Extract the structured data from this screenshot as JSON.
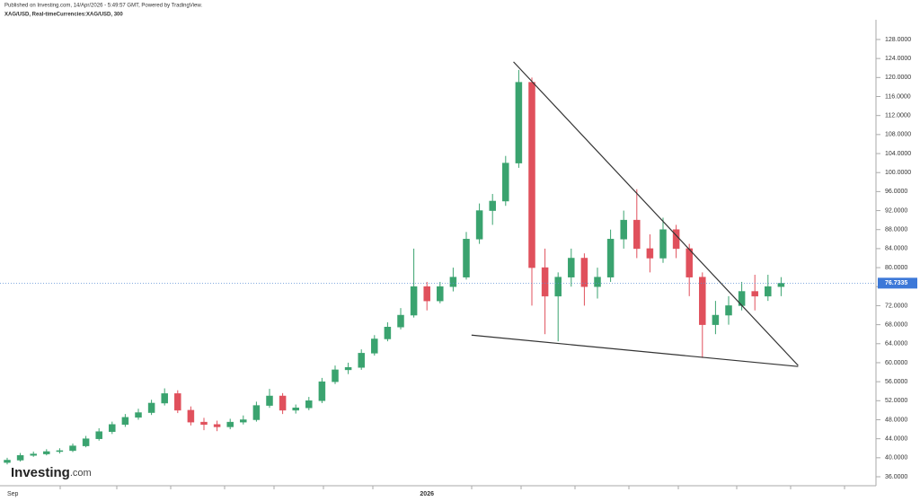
{
  "header": {
    "published": "Published on Investing.com, 14/Apr/2026 - 5:49:57 GMT, Powered by TradingView.",
    "symbol": "XAG/USD, Real-timeCurrencies:XAG/USD, 300"
  },
  "logo": {
    "name": "Investing",
    "suffix": ".com"
  },
  "chart_data": {
    "type": "candlestick",
    "up_color": "#3aa36f",
    "down_color": "#e0505c",
    "grid": false,
    "ylim": [
      34,
      132
    ],
    "yticks": [
      {
        "value": 36,
        "label": "36.0000"
      },
      {
        "value": 40,
        "label": "40.0000"
      },
      {
        "value": 44,
        "label": "44.0000"
      },
      {
        "value": 48,
        "label": "48.0000"
      },
      {
        "value": 52,
        "label": "52.0000"
      },
      {
        "value": 56,
        "label": "56.0000"
      },
      {
        "value": 60,
        "label": "60.0000"
      },
      {
        "value": 64,
        "label": "64.0000"
      },
      {
        "value": 68,
        "label": "68.0000"
      },
      {
        "value": 72,
        "label": "72.0000"
      },
      {
        "value": 76,
        "label": "76.0000"
      },
      {
        "value": 80,
        "label": "80.0000"
      },
      {
        "value": 84,
        "label": "84.0000"
      },
      {
        "value": 88,
        "label": "88.0000"
      },
      {
        "value": 92,
        "label": "92.0000"
      },
      {
        "value": 96,
        "label": "96.0000"
      },
      {
        "value": 100,
        "label": "100.0000"
      },
      {
        "value": 104,
        "label": "104.0000"
      },
      {
        "value": 108,
        "label": "108.0000"
      },
      {
        "value": 112,
        "label": "112.0000"
      },
      {
        "value": 116,
        "label": "116.0000"
      },
      {
        "value": 120,
        "label": "120.0000"
      },
      {
        "value": 124,
        "label": "124.0000"
      },
      {
        "value": 128,
        "label": "128.0000"
      }
    ],
    "categories": [
      "Sep",
      null,
      null,
      null,
      null,
      null,
      null,
      null,
      null,
      null,
      null,
      null,
      null,
      null,
      null,
      null,
      null,
      null,
      null,
      null,
      null,
      null,
      null,
      null,
      null,
      null,
      null,
      null,
      null,
      null,
      null,
      null,
      "2026",
      null,
      null,
      null,
      null,
      null,
      null,
      null,
      null,
      null,
      null,
      null,
      null,
      null,
      null,
      null,
      null,
      null,
      null,
      null,
      null,
      null,
      null,
      null,
      null,
      null,
      null,
      null
    ],
    "candles": [
      {
        "o": 39,
        "h": 40,
        "l": 38.6,
        "c": 39.5
      },
      {
        "o": 39.5,
        "h": 41,
        "l": 39.2,
        "c": 40.5
      },
      {
        "o": 40.5,
        "h": 41.3,
        "l": 40.2,
        "c": 40.8
      },
      {
        "o": 40.8,
        "h": 41.8,
        "l": 40.5,
        "c": 41.3
      },
      {
        "o": 41.3,
        "h": 42,
        "l": 40.9,
        "c": 41.5
      },
      {
        "o": 41.5,
        "h": 43,
        "l": 41.2,
        "c": 42.5
      },
      {
        "o": 42.5,
        "h": 44.6,
        "l": 42.2,
        "c": 44
      },
      {
        "o": 44,
        "h": 46.2,
        "l": 43.6,
        "c": 45.5
      },
      {
        "o": 45.5,
        "h": 47.6,
        "l": 45,
        "c": 47
      },
      {
        "o": 47,
        "h": 49.2,
        "l": 46.5,
        "c": 48.5
      },
      {
        "o": 48.5,
        "h": 50.3,
        "l": 48,
        "c": 49.5
      },
      {
        "o": 49.5,
        "h": 52.2,
        "l": 49,
        "c": 51.5
      },
      {
        "o": 51.5,
        "h": 54.6,
        "l": 51,
        "c": 53.5
      },
      {
        "o": 53.5,
        "h": 54.2,
        "l": 49.4,
        "c": 50
      },
      {
        "o": 50,
        "h": 50.8,
        "l": 46.8,
        "c": 47.5
      },
      {
        "o": 47.5,
        "h": 48.4,
        "l": 45.8,
        "c": 47
      },
      {
        "o": 47,
        "h": 47.8,
        "l": 45.6,
        "c": 46.5
      },
      {
        "o": 46.5,
        "h": 48.2,
        "l": 46,
        "c": 47.5
      },
      {
        "o": 47.5,
        "h": 48.9,
        "l": 47,
        "c": 48
      },
      {
        "o": 48,
        "h": 51.8,
        "l": 47.6,
        "c": 51
      },
      {
        "o": 51,
        "h": 54.5,
        "l": 50.5,
        "c": 53
      },
      {
        "o": 53,
        "h": 53.6,
        "l": 49.2,
        "c": 50
      },
      {
        "o": 50,
        "h": 51.2,
        "l": 49.3,
        "c": 50.5
      },
      {
        "o": 50.5,
        "h": 52.8,
        "l": 50,
        "c": 52
      },
      {
        "o": 52,
        "h": 56.8,
        "l": 51.5,
        "c": 56
      },
      {
        "o": 56,
        "h": 59.4,
        "l": 55.5,
        "c": 58.5
      },
      {
        "o": 58.5,
        "h": 60,
        "l": 57.6,
        "c": 59
      },
      {
        "o": 59,
        "h": 62.8,
        "l": 58.5,
        "c": 62
      },
      {
        "o": 62,
        "h": 65.8,
        "l": 61.5,
        "c": 65
      },
      {
        "o": 65,
        "h": 68.5,
        "l": 64.5,
        "c": 67.5
      },
      {
        "o": 67.5,
        "h": 71.5,
        "l": 67,
        "c": 70
      },
      {
        "o": 70,
        "h": 84,
        "l": 69.5,
        "c": 76
      },
      {
        "o": 76,
        "h": 77,
        "l": 71,
        "c": 73
      },
      {
        "o": 73,
        "h": 77,
        "l": 72.5,
        "c": 76
      },
      {
        "o": 76,
        "h": 80,
        "l": 75,
        "c": 78
      },
      {
        "o": 78,
        "h": 87.5,
        "l": 77.5,
        "c": 86
      },
      {
        "o": 86,
        "h": 93.5,
        "l": 85,
        "c": 92
      },
      {
        "o": 92,
        "h": 95.5,
        "l": 89,
        "c": 94
      },
      {
        "o": 94,
        "h": 103.5,
        "l": 93,
        "c": 102
      },
      {
        "o": 102,
        "h": 121.6,
        "l": 101,
        "c": 119
      },
      {
        "o": 119,
        "h": 120,
        "l": 72,
        "c": 80
      },
      {
        "o": 80,
        "h": 84,
        "l": 66,
        "c": 74
      },
      {
        "o": 74,
        "h": 79,
        "l": 64.5,
        "c": 78
      },
      {
        "o": 78,
        "h": 84,
        "l": 76,
        "c": 82
      },
      {
        "o": 82,
        "h": 83,
        "l": 72,
        "c": 76
      },
      {
        "o": 76,
        "h": 80,
        "l": 73.5,
        "c": 78
      },
      {
        "o": 78,
        "h": 88,
        "l": 77,
        "c": 86
      },
      {
        "o": 86,
        "h": 92,
        "l": 84,
        "c": 90
      },
      {
        "o": 90,
        "h": 96.5,
        "l": 82,
        "c": 84
      },
      {
        "o": 84,
        "h": 87,
        "l": 79,
        "c": 82
      },
      {
        "o": 82,
        "h": 90.5,
        "l": 81,
        "c": 88
      },
      {
        "o": 88,
        "h": 89,
        "l": 82,
        "c": 84
      },
      {
        "o": 84,
        "h": 85,
        "l": 74,
        "c": 78
      },
      {
        "o": 78,
        "h": 79,
        "l": 61,
        "c": 68
      },
      {
        "o": 68,
        "h": 73,
        "l": 66,
        "c": 70
      },
      {
        "o": 70,
        "h": 74,
        "l": 68,
        "c": 72
      },
      {
        "o": 72,
        "h": 77,
        "l": 71,
        "c": 75
      },
      {
        "o": 75,
        "h": 78.5,
        "l": 71,
        "c": 74
      },
      {
        "o": 74,
        "h": 78.5,
        "l": 73,
        "c": 76
      },
      {
        "o": 76,
        "h": 78,
        "l": 74,
        "c": 76.7
      }
    ],
    "last_price": {
      "value": 76.7335,
      "label": "76.7335"
    },
    "trendlines": [
      {
        "points": [
          [
            38.6,
            123.3
          ],
          [
            60.3,
            59.4
          ]
        ]
      },
      {
        "points": [
          [
            35.4,
            65.8
          ],
          [
            60.3,
            59.2
          ]
        ]
      }
    ]
  }
}
